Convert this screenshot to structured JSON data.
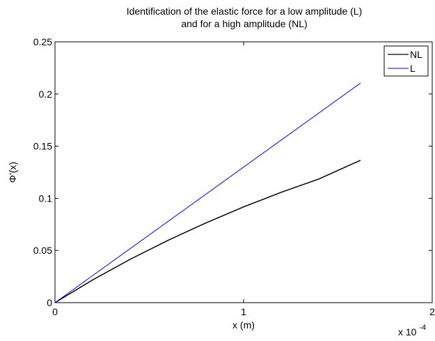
{
  "chart_data": {
    "type": "line",
    "title": [
      "Identification of the elastic force for a low amplitude (L)",
      "and for a high amplitude (NL)"
    ],
    "xlabel": "x (m)",
    "ylabel": "Φ'(x)",
    "x_exponent_label": "x 10",
    "x_exponent_power": "-4",
    "xlim": [
      0,
      0.0002
    ],
    "ylim": [
      0,
      0.25
    ],
    "x_ticks": [
      0,
      0.0001,
      0.0002
    ],
    "x_tick_labels": [
      "0",
      "1",
      "2"
    ],
    "y_ticks": [
      0,
      0.05,
      0.1,
      0.15,
      0.2,
      0.25
    ],
    "y_tick_labels": [
      "0",
      "0.05",
      "0.1",
      "0.15",
      "0.2",
      "0.25"
    ],
    "grid": false,
    "legend_position": "top-right",
    "series": [
      {
        "name": "NL",
        "color": "#000000",
        "x": [
          0,
          2e-05,
          4e-05,
          6e-05,
          8e-05,
          0.0001,
          0.00012,
          0.00014,
          0.000162
        ],
        "values": [
          0,
          0.0218,
          0.0417,
          0.0598,
          0.0764,
          0.0918,
          0.1058,
          0.1186,
          0.1365
        ]
      },
      {
        "name": "L",
        "color": "#0000ff",
        "x": [
          0,
          0.000162
        ],
        "values": [
          0,
          0.2105
        ]
      }
    ]
  }
}
